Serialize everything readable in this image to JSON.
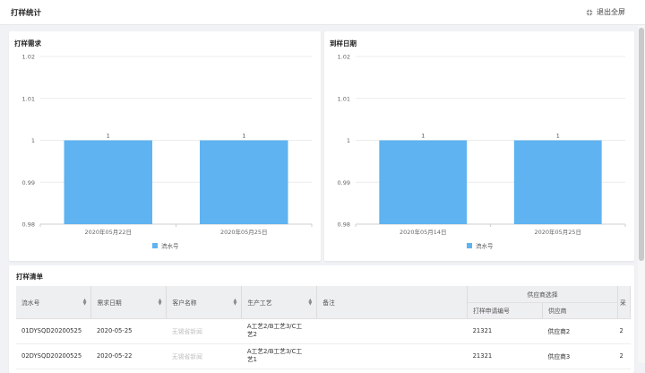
{
  "header": {
    "title": "打样统计",
    "exit_label": "退出全屏"
  },
  "charts": [
    {
      "card_title": "打样需求",
      "chart_data": {
        "type": "bar",
        "categories": [
          "2020年05月22日",
          "2020年05月25日"
        ],
        "series": [
          {
            "name": "流水号",
            "values": [
              1,
              1
            ]
          }
        ],
        "yticks": [
          "1.02",
          "1.01",
          "1",
          "0.99",
          "0.98"
        ],
        "ylim": [
          0.98,
          1.02
        ],
        "legend": "bottom-center",
        "color": "#5fb3f0"
      }
    },
    {
      "card_title": "到样日期",
      "chart_data": {
        "type": "bar",
        "categories": [
          "2020年05月14日",
          "2020年05月25日"
        ],
        "series": [
          {
            "name": "流水号",
            "values": [
              1,
              1
            ]
          }
        ],
        "yticks": [
          "1.02",
          "1.01",
          "1",
          "0.99",
          "0.98"
        ],
        "ylim": [
          0.98,
          1.02
        ],
        "legend": "bottom-center",
        "color": "#5fb3f0"
      }
    }
  ],
  "list": {
    "title": "打样清单",
    "columns": {
      "serial": "流水号",
      "demand_date": "需求日期",
      "customer": "客户名称",
      "process": "生产工艺",
      "remark": "备注",
      "supplier_group": "供应商选择",
      "apply_no": "打样申请编号",
      "supplier": "供应商",
      "extra": "采"
    },
    "rows": [
      {
        "serial": "01DYSQD20200525",
        "demand_date": "2020-05-25",
        "customer": "无锡省新闻",
        "process1": "A工艺2/B工艺3/C工",
        "process2": "艺2",
        "remark": "",
        "apply_no": "21321",
        "supplier": "供应商2",
        "extra": "2"
      },
      {
        "serial": "02DYSQD20200525",
        "demand_date": "2020-05-22",
        "customer": "无锡省新闻",
        "process1": "A工艺2/B工艺3/C工",
        "process2": "艺1",
        "remark": "",
        "apply_no": "21321",
        "supplier": "供应商3",
        "extra": "2"
      }
    ]
  }
}
